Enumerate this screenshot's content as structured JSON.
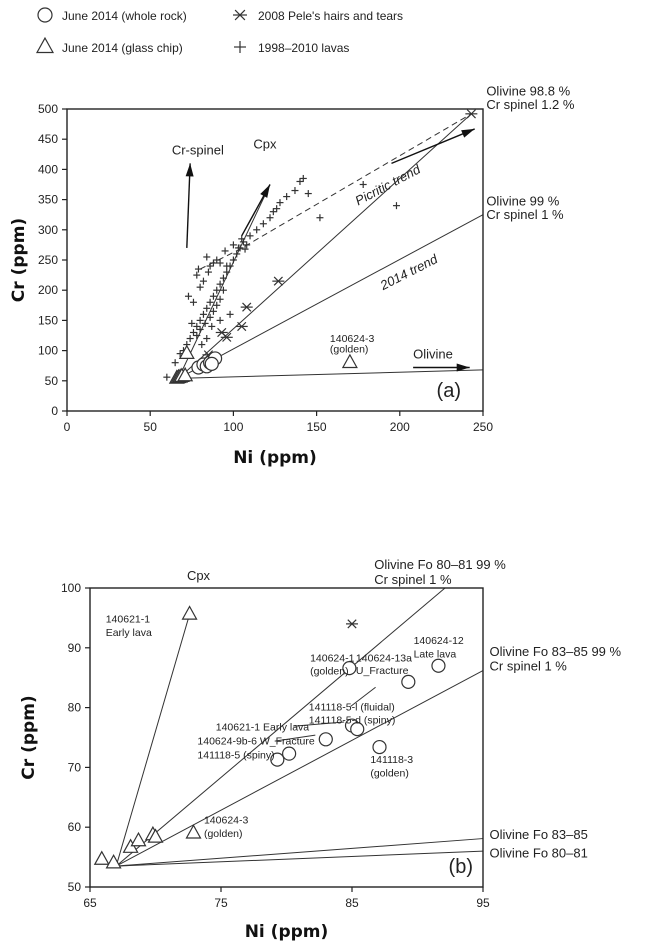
{
  "legend": [
    {
      "marker": "circle",
      "label": "June 2014 (whole rock)"
    },
    {
      "marker": "asterisk",
      "label": "2008 Pele's hairs and tears"
    },
    {
      "marker": "triangle",
      "label": "June 2014 (glass chip)"
    },
    {
      "marker": "plus",
      "label": "1998–2010 lavas"
    }
  ],
  "chart_data": [
    {
      "type": "scatter",
      "panel_label": "(a)",
      "xlabel": "Ni (ppm)",
      "ylabel": "Cr (ppm)",
      "xlim": [
        0,
        250
      ],
      "ylim": [
        0,
        500
      ],
      "xticks": [
        "0",
        "50",
        "100",
        "150",
        "200",
        "250"
      ],
      "yticks": [
        "0",
        "50",
        "100",
        "150",
        "200",
        "250",
        "300",
        "350",
        "400",
        "450",
        "500"
      ],
      "grid": false,
      "series": [
        {
          "marker": "plus",
          "points": [
            [
              60,
              56
            ],
            [
              65,
              80
            ],
            [
              68,
              95
            ],
            [
              70,
              100
            ],
            [
              72,
              110
            ],
            [
              74,
              120
            ],
            [
              76,
              130
            ],
            [
              78,
              140
            ],
            [
              80,
              150
            ],
            [
              82,
              160
            ],
            [
              84,
              170
            ],
            [
              86,
              180
            ],
            [
              88,
              190
            ],
            [
              90,
              200
            ],
            [
              92,
              210
            ],
            [
              94,
              220
            ],
            [
              96,
              230
            ],
            [
              98,
              240
            ],
            [
              100,
              250
            ],
            [
              102,
              260
            ],
            [
              104,
              270
            ],
            [
              106,
              280
            ],
            [
              110,
              290
            ],
            [
              114,
              300
            ],
            [
              118,
              310
            ],
            [
              122,
              320
            ],
            [
              124,
              330
            ],
            [
              126,
              335
            ],
            [
              128,
              345
            ],
            [
              132,
              355
            ],
            [
              137,
              365
            ],
            [
              140,
              380
            ],
            [
              142,
              385
            ],
            [
              145,
              360
            ],
            [
              152,
              320
            ],
            [
              178,
              375
            ],
            [
              198,
              340
            ],
            [
              73,
              190
            ],
            [
              76,
              180
            ],
            [
              80,
              205
            ],
            [
              82,
              215
            ],
            [
              85,
              230
            ],
            [
              88,
              245
            ],
            [
              95,
              265
            ],
            [
              100,
              275
            ],
            [
              105,
              285
            ],
            [
              108,
              275
            ],
            [
              79,
              235
            ],
            [
              84,
              255
            ],
            [
              90,
              250
            ],
            [
              96,
              240
            ],
            [
              78,
              125
            ],
            [
              80,
              135
            ],
            [
              83,
              145
            ],
            [
              86,
              155
            ],
            [
              88,
              165
            ],
            [
              90,
              175
            ],
            [
              92,
              185
            ],
            [
              94,
              200
            ],
            [
              75,
              145
            ],
            [
              81,
              110
            ],
            [
              84,
              120
            ],
            [
              87,
              140
            ],
            [
              92,
              150
            ],
            [
              98,
              160
            ],
            [
              103,
              270
            ],
            [
              107,
              268
            ],
            [
              78,
              225
            ],
            [
              92,
              245
            ],
            [
              86,
              240
            ]
          ]
        },
        {
          "marker": "asterisk",
          "points": [
            [
              85,
              93
            ],
            [
              93,
              130
            ],
            [
              96,
              122
            ],
            [
              105,
              140
            ],
            [
              108,
              172
            ],
            [
              127,
              215
            ],
            [
              243,
              492
            ]
          ]
        },
        {
          "marker": "circle",
          "points": [
            [
              79,
              72
            ],
            [
              82,
              77
            ],
            [
              84,
              74
            ],
            [
              86,
              80
            ],
            [
              89,
              87
            ],
            [
              87,
              78
            ]
          ]
        },
        {
          "marker": "triangle",
          "points": [
            [
              66,
              54
            ],
            [
              67,
              55
            ],
            [
              68,
              56
            ],
            [
              69,
              57
            ],
            [
              71,
              58
            ],
            [
              72,
              95
            ],
            [
              170,
              80
            ]
          ]
        }
      ],
      "lines": [
        {
          "name": "Olivine 98.8 % Cr spinel 1.2 %",
          "style": "solid",
          "points": [
            [
              67,
              54
            ],
            [
              243,
              492
            ]
          ]
        },
        {
          "name": "Olivine 99 % Cr spinel 1 %",
          "style": "solid",
          "points": [
            [
              67,
              54
            ],
            [
              250,
              325
            ]
          ]
        },
        {
          "name": "Olivine",
          "style": "solid",
          "points": [
            [
              67,
              54
            ],
            [
              250,
              68
            ]
          ]
        },
        {
          "name": "Cpx",
          "style": "solid",
          "points": [
            [
              67,
              54
            ],
            [
              122,
              375
            ]
          ]
        },
        {
          "name": "Picritic trend",
          "style": "dashed",
          "points": [
            [
              80,
              235
            ],
            [
              104,
              268
            ],
            [
              243,
              492
            ]
          ]
        }
      ],
      "arrows": [
        {
          "name": "Cr-spinel",
          "from": [
            72,
            270
          ],
          "to": [
            74,
            410
          ]
        },
        {
          "name": "Cpx",
          "from": [
            105,
            290
          ],
          "to": [
            122,
            375
          ]
        },
        {
          "name": "trend",
          "from": [
            195,
            410
          ],
          "to": [
            245,
            467
          ]
        },
        {
          "name": "Olivine",
          "from": [
            208,
            72
          ],
          "to": [
            242,
            72
          ]
        }
      ],
      "annotations": [
        {
          "text": "Olivine 98.8 %",
          "x": 252,
          "y": 522
        },
        {
          "text": "Cr spinel 1.2 %",
          "x": 252,
          "y": 500
        },
        {
          "text": "Olivine 99 %",
          "x": 252,
          "y": 340
        },
        {
          "text": "Cr spinel 1 %",
          "x": 252,
          "y": 318
        },
        {
          "text": "Cr-spinel",
          "x": 63,
          "y": 425
        },
        {
          "text": "Cpx",
          "x": 112,
          "y": 435
        },
        {
          "text": "Picritic trend",
          "x": 175,
          "y": 340,
          "style": "italic",
          "rotate": -28
        },
        {
          "text": "2014 trend",
          "x": 190,
          "y": 200,
          "style": "italic",
          "rotate": -27
        },
        {
          "text": "140624-3",
          "x": 158,
          "y": 114,
          "size": "small"
        },
        {
          "text": "(golden)",
          "x": 158,
          "y": 97,
          "size": "small"
        },
        {
          "text": "Olivine",
          "x": 208,
          "y": 87
        }
      ]
    },
    {
      "type": "scatter",
      "panel_label": "(b)",
      "xlabel": "Ni (ppm)",
      "ylabel": "Cr (ppm)",
      "xlim": [
        65,
        95
      ],
      "ylim": [
        50,
        100
      ],
      "xticks": [
        "65",
        "75",
        "85",
        "95"
      ],
      "yticks": [
        "50",
        "60",
        "70",
        "80",
        "90",
        "100"
      ],
      "grid": false,
      "series": [
        {
          "marker": "asterisk",
          "points": [
            [
              85.0,
              94.0
            ]
          ]
        },
        {
          "marker": "circle",
          "points": [
            [
              84.8,
              86.6
            ],
            [
              89.3,
              84.3
            ],
            [
              91.6,
              87.0
            ],
            [
              85.0,
              77.0
            ],
            [
              85.4,
              76.4
            ],
            [
              83.0,
              74.7
            ],
            [
              80.2,
              72.3
            ],
            [
              79.3,
              71.3
            ],
            [
              87.1,
              73.4
            ]
          ]
        },
        {
          "marker": "triangle",
          "points": [
            [
              65.9,
              54.6
            ],
            [
              66.8,
              54.0
            ],
            [
              68.1,
              56.6
            ],
            [
              68.7,
              57.7
            ],
            [
              69.8,
              58.7
            ],
            [
              70.0,
              58.3
            ],
            [
              72.6,
              95.6
            ],
            [
              72.9,
              59.0
            ]
          ]
        }
      ],
      "lines": [
        {
          "name": "Cpx",
          "style": "solid",
          "points": [
            [
              67.0,
              53.5
            ],
            [
              72.6,
              95.6
            ]
          ]
        },
        {
          "name": "Olivine Fo 80–81 99 % Cr spinel 1 %",
          "style": "solid",
          "points": [
            [
              67.0,
              53.5
            ],
            [
              92.1,
              100.0
            ]
          ]
        },
        {
          "name": "Olivine Fo 83–85 99 % Cr spinel 1 %",
          "style": "solid",
          "points": [
            [
              67.0,
              53.5
            ],
            [
              95.0,
              86.2
            ]
          ]
        },
        {
          "name": "Olivine Fo 83–85",
          "style": "solid",
          "points": [
            [
              67.0,
              53.5
            ],
            [
              95.0,
              58.1
            ]
          ]
        },
        {
          "name": "Olivine Fo 80–81",
          "style": "solid",
          "points": [
            [
              67.0,
              53.5
            ],
            [
              95.0,
              56.0
            ]
          ]
        }
      ],
      "annotations": [
        {
          "text": "Cpx",
          "x": 72.4,
          "y": 101.3
        },
        {
          "text": "140621-1",
          "x": 66.2,
          "y": 94.2,
          "size": "small"
        },
        {
          "text": "Early lava",
          "x": 66.2,
          "y": 92.0,
          "size": "small"
        },
        {
          "text": "Olivine Fo 80–81  99 %",
          "x": 86.7,
          "y": 103.2
        },
        {
          "text": "Cr spinel 1 %",
          "x": 86.7,
          "y": 100.7
        },
        {
          "text": "140624-12",
          "x": 89.7,
          "y": 90.6,
          "size": "small"
        },
        {
          "text": "Late lava",
          "x": 89.7,
          "y": 88.4,
          "size": "small"
        },
        {
          "text": "140624-1",
          "x": 81.8,
          "y": 87.7,
          "size": "small"
        },
        {
          "text": "(golden)",
          "x": 81.8,
          "y": 85.5,
          "size": "small"
        },
        {
          "text": "140624-13a",
          "x": 85.3,
          "y": 87.7,
          "size": "small"
        },
        {
          "text": "U_Fracture",
          "x": 85.3,
          "y": 85.6,
          "size": "small"
        },
        {
          "text": "Olivine Fo 83–85  99 %",
          "x": 95.5,
          "y": 88.6
        },
        {
          "text": "Cr spinel 1 %",
          "x": 95.5,
          "y": 86.2
        },
        {
          "text": "141118-5-l (fluidal)",
          "x": 81.7,
          "y": 79.5,
          "size": "small"
        },
        {
          "text": "141118-5-d (spiny)",
          "x": 81.7,
          "y": 77.3,
          "size": "small"
        },
        {
          "text": "140621-1 Early lava",
          "x": 74.6,
          "y": 76.2,
          "size": "small"
        },
        {
          "text": "140624-9b-6 W_Fracture",
          "x": 73.2,
          "y": 73.8,
          "size": "small"
        },
        {
          "text": "141118-5 (spiny)",
          "x": 73.2,
          "y": 71.5,
          "size": "small"
        },
        {
          "text": "141118-3",
          "x": 86.4,
          "y": 70.7,
          "size": "small"
        },
        {
          "text": "(golden)",
          "x": 86.4,
          "y": 68.5,
          "size": "small"
        },
        {
          "text": "140624-3",
          "x": 73.7,
          "y": 60.6,
          "size": "small"
        },
        {
          "text": "(golden)",
          "x": 73.7,
          "y": 58.4,
          "size": "small"
        },
        {
          "text": "Olivine Fo 83–85",
          "x": 95.5,
          "y": 58.0
        },
        {
          "text": "Olivine Fo 80–81",
          "x": 95.5,
          "y": 54.9
        }
      ],
      "leaders": [
        {
          "from": [
            84.9,
            80.2
          ],
          "to": [
            86.8,
            83.4
          ]
        },
        {
          "from": [
            80.6,
            76.9
          ],
          "to": [
            84.4,
            77.6
          ]
        },
        {
          "from": [
            79.1,
            74.4
          ],
          "to": [
            82.2,
            75.4
          ]
        }
      ]
    }
  ]
}
